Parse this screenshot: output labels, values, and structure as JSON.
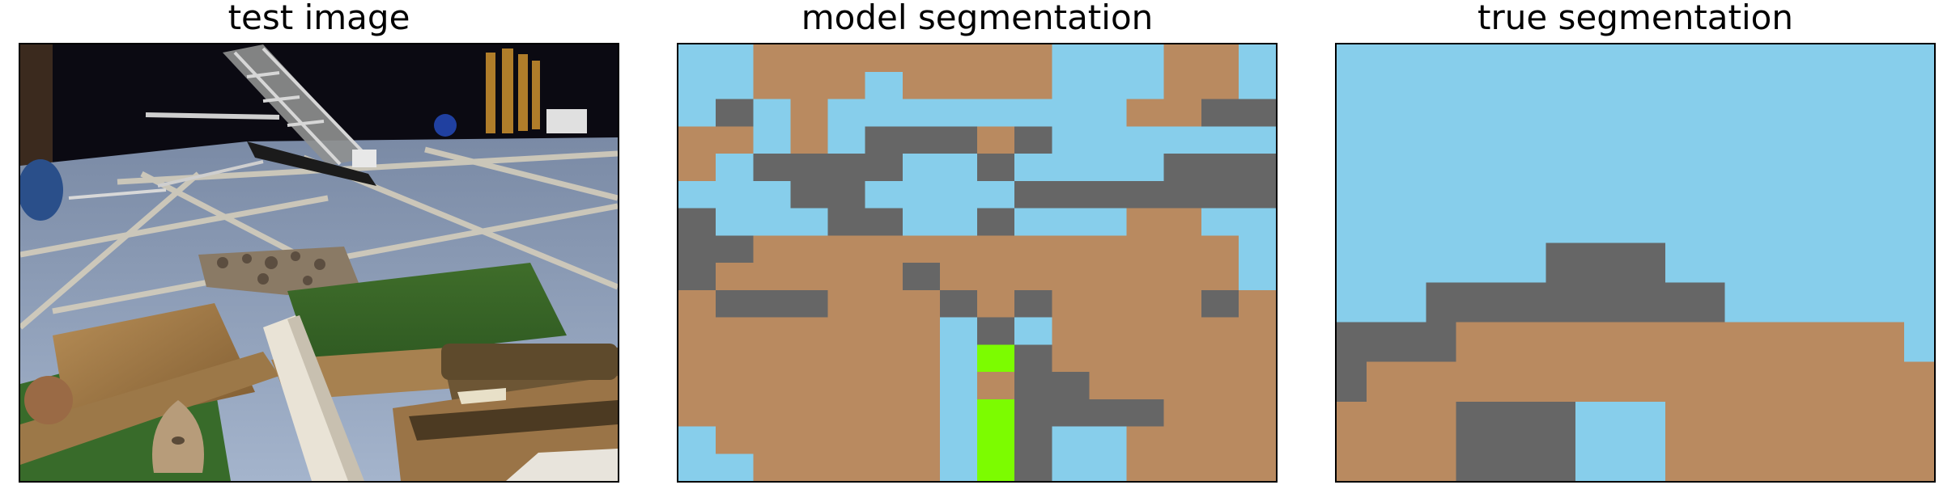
{
  "panels": [
    {
      "title": "test image"
    },
    {
      "title": "model segmentation"
    },
    {
      "title": "true segmentation"
    }
  ],
  "colors": {
    "sky": "#87ceeb",
    "ground": "#b98a60",
    "object": "#666666",
    "vegetation": "#7cfc00"
  },
  "legend_map": {
    "0": "sky",
    "1": "ground",
    "2": "object",
    "3": "vegetation"
  },
  "model_grid": [
    "0011111111000110",
    "0011101111000110",
    "0201000000001122",
    "1101022212000000",
    "1022220020000222",
    "0002200002222222",
    "2000220020001100",
    "2211111111111110",
    "2111112111111110",
    "1222111212111121",
    "1111111020111111",
    "1111111032111111",
    "1111111012211111",
    "1111111032222111",
    "0111111032001111",
    "0011111032001111"
  ],
  "true_grid": [
    "00000000000000000000",
    "00000000000000000000",
    "00000000000000000000",
    "00000000000000000000",
    "00000000000000000000",
    "00000002222000000000",
    "00022222222220000000",
    "22221111111111111110",
    "21111111111111111111",
    "11112222000111111111",
    "11112222000111111111"
  ]
}
